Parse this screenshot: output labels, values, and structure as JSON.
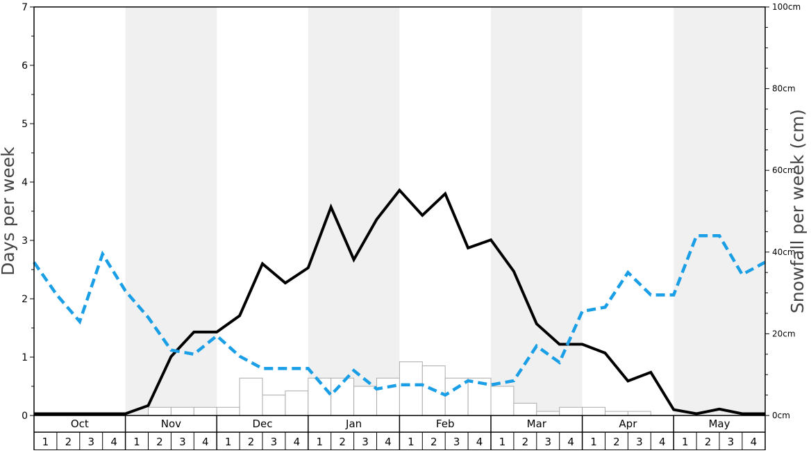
{
  "chart_data": {
    "type": "bar",
    "ylabel": "Days per week",
    "y2label": "Snowfall per week (cm)",
    "ylim": [
      0,
      7
    ],
    "y2lim": [
      0,
      100
    ],
    "y2_unit": "cm",
    "yticks": [
      "0",
      "1",
      "2",
      "3",
      "4",
      "5",
      "6",
      "7"
    ],
    "y2ticks": [
      "0cm",
      "20cm",
      "40cm",
      "60cm",
      "80cm",
      "100cm"
    ],
    "months": [
      "Oct",
      "Nov",
      "Dec",
      "Jan",
      "Feb",
      "Mar",
      "Apr",
      "May"
    ],
    "week_labels": [
      "1",
      "2",
      "3",
      "4"
    ],
    "grid": false,
    "legend": "none",
    "bars": {
      "axis": "y",
      "values": [
        0,
        0,
        0,
        0,
        0,
        0.14,
        0.14,
        0.14,
        0.14,
        0.64,
        0.35,
        0.42,
        0.64,
        0.64,
        0.5,
        0.64,
        0.92,
        0.85,
        0.64,
        0.64,
        0.5,
        0.21,
        0.07,
        0.14,
        0.14,
        0.07,
        0.07,
        0,
        0,
        0,
        0,
        0
      ],
      "fill": "#ffffff",
      "stroke": "#aaaaaa"
    },
    "series": [
      {
        "axis": "y",
        "style": "solid",
        "color": "#000000",
        "values": [
          0.03,
          0.03,
          0.03,
          0.03,
          0.03,
          0.17,
          1.01,
          1.43,
          1.43,
          1.71,
          2.6,
          2.27,
          2.53,
          3.57,
          2.67,
          3.36,
          3.86,
          3.43,
          3.8,
          2.87,
          3.01,
          2.47,
          1.57,
          1.22,
          1.22,
          1.07,
          0.59,
          0.74,
          0.1,
          0.03,
          0.11,
          0.03,
          0.03
        ]
      },
      {
        "axis": "y2",
        "style": "dashed",
        "color": "#1a9ee6",
        "values": [
          37.5,
          29.5,
          23,
          39.5,
          30.5,
          24,
          16,
          15,
          19.5,
          14.5,
          11.5,
          11.5,
          11.5,
          5,
          11,
          6.5,
          7.5,
          7.5,
          5,
          8.5,
          7.5,
          8.5,
          17,
          13,
          25.5,
          26.5,
          35,
          29.5,
          29.5,
          44,
          44,
          34.5,
          37.5
        ]
      }
    ]
  }
}
